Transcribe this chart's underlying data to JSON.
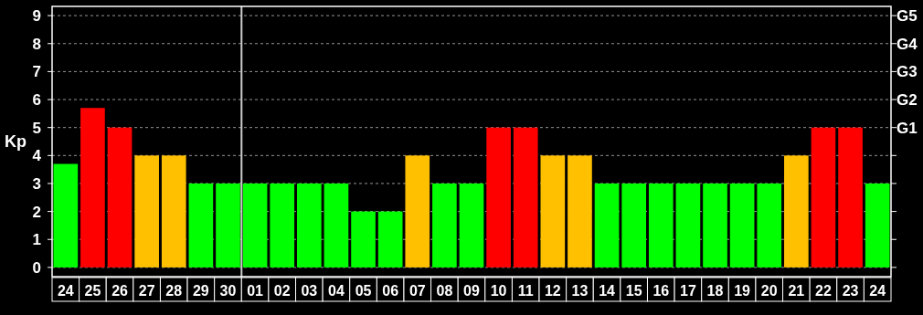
{
  "chart_data": {
    "type": "bar",
    "ylabel": "Kp",
    "categories": [
      "24",
      "25",
      "26",
      "27",
      "28",
      "29",
      "30",
      "01",
      "02",
      "03",
      "04",
      "05",
      "06",
      "07",
      "08",
      "09",
      "10",
      "11",
      "12",
      "13",
      "14",
      "15",
      "16",
      "17",
      "18",
      "19",
      "20",
      "21",
      "22",
      "23",
      "24"
    ],
    "values": [
      3.7,
      5.7,
      5,
      4,
      4,
      3,
      3,
      3,
      3,
      3,
      3,
      2,
      2,
      4,
      3,
      3,
      5,
      5,
      4,
      4,
      3,
      3,
      3,
      3,
      3,
      3,
      3,
      4,
      5,
      5,
      3
    ],
    "colors": [
      "#00ff00",
      "#ff0000",
      "#ff0000",
      "#ffc000",
      "#ffc000",
      "#00ff00",
      "#00ff00",
      "#00ff00",
      "#00ff00",
      "#00ff00",
      "#00ff00",
      "#00ff00",
      "#00ff00",
      "#ffc000",
      "#00ff00",
      "#00ff00",
      "#ff0000",
      "#ff0000",
      "#ffc000",
      "#ffc000",
      "#00ff00",
      "#00ff00",
      "#00ff00",
      "#00ff00",
      "#00ff00",
      "#00ff00",
      "#00ff00",
      "#ffc000",
      "#ff0000",
      "#ff0000",
      "#00ff00"
    ],
    "ylim": [
      -0.33,
      9.33
    ],
    "yticks": [
      0,
      1,
      2,
      3,
      4,
      5,
      6,
      7,
      8,
      9
    ],
    "ref_lines": [
      {
        "axis": "x",
        "value": "01",
        "color": "#cccccc"
      }
    ],
    "annotations": [
      "G1",
      "G2",
      "G3",
      "G4",
      "G5"
    ],
    "grid": "y"
  }
}
